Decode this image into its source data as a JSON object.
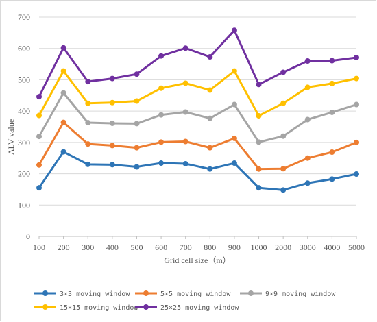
{
  "chart_data": {
    "type": "line",
    "title": "",
    "xlabel": "Grid cell size（m）",
    "ylabel": "ALV value",
    "categories": [
      "100",
      "200",
      "300",
      "400",
      "500",
      "600",
      "700",
      "800",
      "900",
      "1000",
      "2000",
      "3000",
      "4000",
      "5000"
    ],
    "ylim": [
      0,
      700
    ],
    "yticks": [
      0,
      100,
      200,
      300,
      400,
      500,
      600,
      700
    ],
    "grid": true,
    "legend_position": "bottom",
    "series": [
      {
        "name": "3×3 moving window",
        "color": "#2e75b6",
        "values": [
          155,
          270,
          230,
          229,
          222,
          234,
          232,
          215,
          234,
          155,
          148,
          170,
          183,
          199
        ]
      },
      {
        "name": "5×5 moving window",
        "color": "#ed7d31",
        "values": [
          228,
          364,
          295,
          290,
          283,
          301,
          303,
          283,
          313,
          215,
          216,
          250,
          269,
          300
        ]
      },
      {
        "name": "9×9 moving window",
        "color": "#a5a5a5",
        "values": [
          319,
          458,
          363,
          361,
          360,
          388,
          397,
          377,
          421,
          301,
          320,
          373,
          396,
          421
        ]
      },
      {
        "name": "15×15 moving window",
        "color": "#ffc000",
        "values": [
          386,
          528,
          425,
          427,
          432,
          473,
          489,
          467,
          528,
          385,
          425,
          476,
          488,
          504
        ]
      },
      {
        "name": "25×25 moving window",
        "color": "#7030a0",
        "values": [
          446,
          602,
          494,
          504,
          518,
          576,
          601,
          573,
          658,
          485,
          524,
          560,
          561,
          571
        ]
      }
    ]
  }
}
